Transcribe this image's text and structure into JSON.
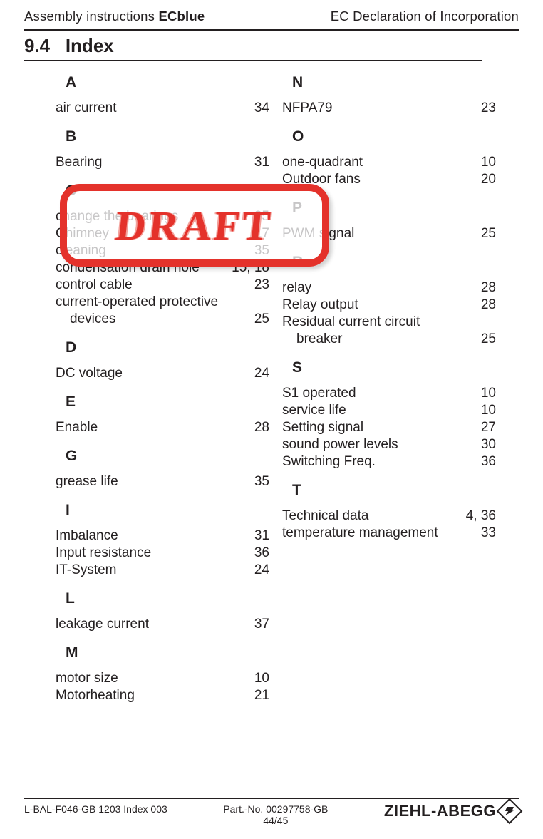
{
  "header": {
    "left_prefix": "Assembly instructions ",
    "left_bold": "ECblue",
    "right": "EC Declaration of Incorporation"
  },
  "section": {
    "number": "9.4",
    "title": "Index"
  },
  "stamp": {
    "text": "DRAFT",
    "border_color": "#e4322b",
    "text_color": "#e4322b"
  },
  "index": {
    "left": [
      {
        "type": "letter",
        "label": "A"
      },
      {
        "type": "entry",
        "term": "air current",
        "pages": "34"
      },
      {
        "type": "letter",
        "label": "B"
      },
      {
        "type": "entry",
        "term": "Bearing",
        "pages": "31"
      },
      {
        "type": "letter",
        "label": "C"
      },
      {
        "type": "entry",
        "term": "change the bearings",
        "pages": "35"
      },
      {
        "type": "entry",
        "term": "Chimney",
        "pages": "17"
      },
      {
        "type": "entry",
        "term": "cleaning",
        "pages": "35"
      },
      {
        "type": "entry",
        "term": "condensation drain hole",
        "pages": "15, 18"
      },
      {
        "type": "entry",
        "term": "control cable",
        "pages": "23"
      },
      {
        "type": "entry",
        "term": "current-operated protective",
        "pages": ""
      },
      {
        "type": "entry",
        "term": "devices",
        "pages": "25",
        "sub": true
      },
      {
        "type": "letter",
        "label": "D"
      },
      {
        "type": "entry",
        "term": "DC voltage",
        "pages": "24"
      },
      {
        "type": "letter",
        "label": "E"
      },
      {
        "type": "entry",
        "term": "Enable",
        "pages": "28"
      },
      {
        "type": "letter",
        "label": "G"
      },
      {
        "type": "entry",
        "term": "grease life",
        "pages": "35"
      },
      {
        "type": "letter",
        "label": "I"
      },
      {
        "type": "entry",
        "term": "Imbalance",
        "pages": "31"
      },
      {
        "type": "entry",
        "term": "Input resistance",
        "pages": "36"
      },
      {
        "type": "entry",
        "term": "IT-System",
        "pages": "24"
      },
      {
        "type": "letter",
        "label": "L"
      },
      {
        "type": "entry",
        "term": "leakage current",
        "pages": "37"
      },
      {
        "type": "letter",
        "label": "M"
      },
      {
        "type": "entry",
        "term": "motor size",
        "pages": "10"
      },
      {
        "type": "entry",
        "term": "Motorheating",
        "pages": "21"
      }
    ],
    "right": [
      {
        "type": "letter",
        "label": "N"
      },
      {
        "type": "entry",
        "term": "NFPA79",
        "pages": "23"
      },
      {
        "type": "letter",
        "label": "O"
      },
      {
        "type": "entry",
        "term": "one-quadrant",
        "pages": "10"
      },
      {
        "type": "entry",
        "term": "Outdoor fans",
        "pages": "20"
      },
      {
        "type": "letter",
        "label": "P"
      },
      {
        "type": "entry",
        "term": "PWM signal",
        "pages": "25"
      },
      {
        "type": "letter",
        "label": "R"
      },
      {
        "type": "entry",
        "term": "relay",
        "pages": "28"
      },
      {
        "type": "entry",
        "term": "Relay output",
        "pages": "28"
      },
      {
        "type": "entry",
        "term": "Residual current circuit",
        "pages": ""
      },
      {
        "type": "entry",
        "term": "breaker",
        "pages": "25",
        "sub": true
      },
      {
        "type": "letter",
        "label": "S"
      },
      {
        "type": "entry",
        "term": "S1 operated",
        "pages": "10"
      },
      {
        "type": "entry",
        "term": "service life",
        "pages": "10"
      },
      {
        "type": "entry",
        "term": "Setting signal",
        "pages": "27"
      },
      {
        "type": "entry",
        "term": "sound power levels",
        "pages": "30"
      },
      {
        "type": "entry",
        "term": "Switching Freq.",
        "pages": "36"
      },
      {
        "type": "letter",
        "label": "T"
      },
      {
        "type": "entry",
        "term": "Technical data",
        "pages": "4, 36"
      },
      {
        "type": "entry",
        "term": "temperature management",
        "pages": "33"
      }
    ]
  },
  "footer": {
    "left": "L-BAL-F046-GB 1203 Index 003",
    "center_line1": "Part.-No. 00297758-GB",
    "center_line2": "44/45",
    "logo_text": "ZIEHL-ABEGG"
  },
  "colors": {
    "text": "#231f20",
    "background": "#ffffff",
    "rule": "#231f20"
  }
}
